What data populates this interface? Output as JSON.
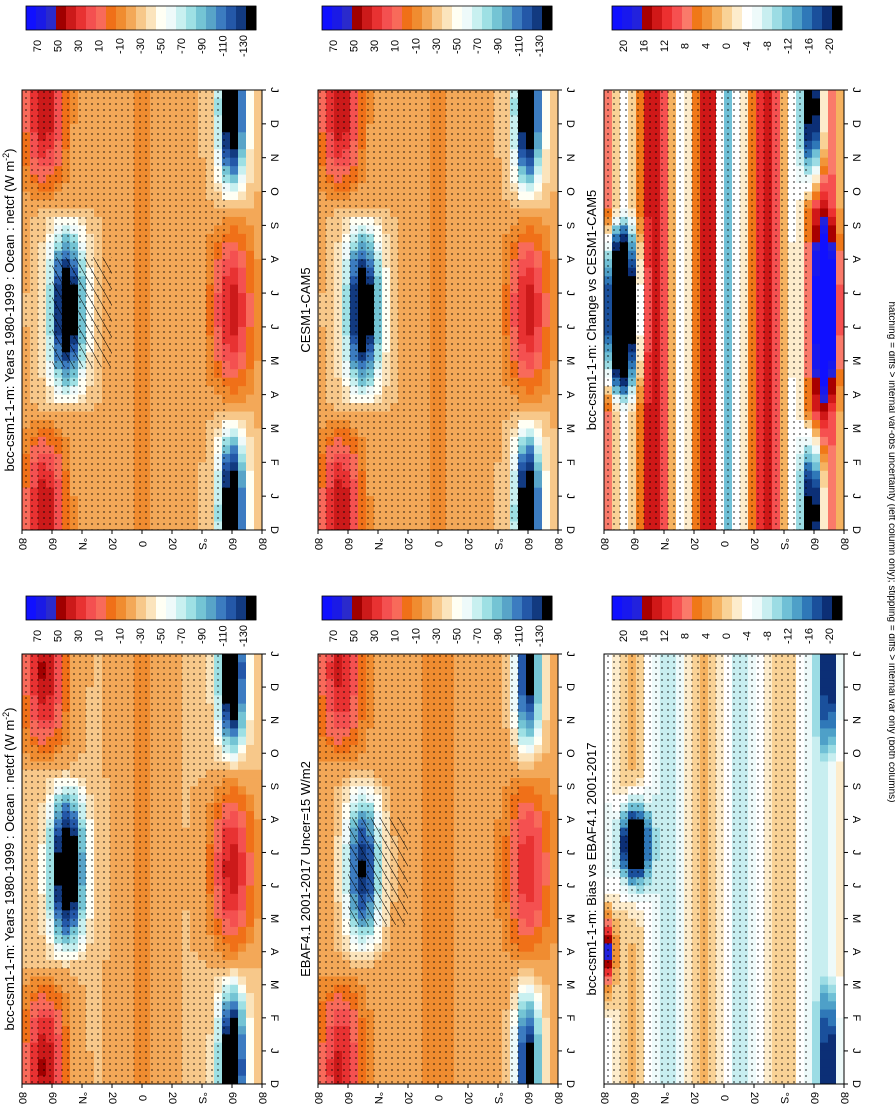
{
  "figure": {
    "footnote": "hatching = diffs > internal var-obs uncertainty (left column only); stippling = diffs > internal var only (both columns)"
  },
  "colors": {
    "abs_scale": [
      "#0000ff",
      "#0000ff",
      "#0000ff",
      "#1a1acc",
      "#8b0000",
      "#b22222",
      "#e03030",
      "#ff5050",
      "#ff7f7f",
      "#e07020",
      "#f09030",
      "#f5b060",
      "#fadca0",
      "#ffffe0",
      "#ffffff",
      "#e0f8f8",
      "#b0e8e8",
      "#80c8d8",
      "#60a8c8",
      "#4080c0",
      "#2050a0",
      "#103070",
      "#000000"
    ],
    "diff_scale": [
      "#0000ff",
      "#0000ff",
      "#0000ff",
      "#1a1acc",
      "#8b0000",
      "#b22222",
      "#e03030",
      "#ff5050",
      "#ff7f7f",
      "#e07020",
      "#f09030",
      "#f5b060",
      "#fadca0",
      "#ffffe0",
      "#ffffff",
      "#e0f8f8",
      "#b0e8e8",
      "#80c8d8",
      "#60a8c8",
      "#4080c0",
      "#2050a0",
      "#103070",
      "#000000"
    ]
  },
  "chart_data": [
    {
      "type": "heatmap",
      "id": "p1",
      "title": "bcc-csm1-1-m: Years 1980-1999 : Ocean : netcf (W m",
      "title_sup": "-2",
      "title_close": ")",
      "x_ticks": [
        "D",
        "J",
        "F",
        "M",
        "A",
        "M",
        "J",
        "J",
        "A",
        "S",
        "O",
        "N",
        "D",
        "J"
      ],
      "y_ticks": [
        "80",
        "60",
        "°N",
        "20",
        "0",
        "20",
        "°S",
        "60",
        "80"
      ],
      "colorbar_ticks": [
        "70",
        "50",
        "30",
        "10",
        "-10",
        "-30",
        "-50",
        "-70",
        "-90",
        "-110",
        "-130"
      ],
      "range": [
        -130,
        70
      ],
      "field": "abs"
    },
    {
      "type": "heatmap",
      "id": "p2",
      "title": "bcc-csm1-1-m: Years 1980-1999 : Ocean : netcf (W m",
      "title_sup": "-2",
      "title_close": ")",
      "x_ticks": [
        "D",
        "J",
        "F",
        "M",
        "A",
        "M",
        "J",
        "J",
        "A",
        "S",
        "O",
        "N",
        "D",
        "J"
      ],
      "y_ticks": [
        "80",
        "60",
        "°N",
        "20",
        "0",
        "20",
        "°S",
        "60",
        "80"
      ],
      "colorbar_ticks": [
        "70",
        "50",
        "30",
        "10",
        "-10",
        "-30",
        "-50",
        "-70",
        "-90",
        "-110",
        "-130"
      ],
      "range": [
        -130,
        70
      ],
      "field": "abs"
    },
    {
      "type": "heatmap",
      "id": "p3",
      "title": "EBAF4.1 2001-2017 Uncer=15 W/m2",
      "x_ticks": [
        "D",
        "J",
        "F",
        "M",
        "A",
        "M",
        "J",
        "J",
        "A",
        "S",
        "O",
        "N",
        "D",
        "J"
      ],
      "y_ticks": [
        "80",
        "60",
        "°N",
        "20",
        "0",
        "20",
        "°S",
        "60",
        "80"
      ],
      "colorbar_ticks": [
        "70",
        "50",
        "30",
        "10",
        "-10",
        "-30",
        "-50",
        "-70",
        "-90",
        "-110",
        "-130"
      ],
      "range": [
        -130,
        70
      ],
      "field": "abs"
    },
    {
      "type": "heatmap",
      "id": "p4",
      "title": "CESM1-CAM5",
      "x_ticks": [
        "D",
        "J",
        "F",
        "M",
        "A",
        "M",
        "J",
        "J",
        "A",
        "S",
        "O",
        "N",
        "D",
        "J"
      ],
      "y_ticks": [
        "80",
        "60",
        "°N",
        "20",
        "0",
        "20",
        "°S",
        "60",
        "80"
      ],
      "colorbar_ticks": [
        "70",
        "50",
        "30",
        "10",
        "-10",
        "-30",
        "-50",
        "-70",
        "-90",
        "-110",
        "-130"
      ],
      "range": [
        -130,
        70
      ],
      "field": "abs"
    },
    {
      "type": "heatmap",
      "id": "p5",
      "title": "bcc-csm1-1-m: Bias vs EBAF4.1 2001-2017",
      "x_ticks": [
        "D",
        "J",
        "F",
        "M",
        "A",
        "M",
        "J",
        "J",
        "A",
        "S",
        "O",
        "N",
        "D",
        "J"
      ],
      "y_ticks": [
        "80",
        "60",
        "°N",
        "20",
        "0",
        "20",
        "°S",
        "60",
        "80"
      ],
      "colorbar_ticks": [
        "20",
        "16",
        "12",
        "8",
        "4",
        "0",
        "-4",
        "-8",
        "-12",
        "-16",
        "-20"
      ],
      "range": [
        -20,
        20
      ],
      "field": "bias"
    },
    {
      "type": "heatmap",
      "id": "p6",
      "title": "bcc-csm1-1-m: Change vs CESM1-CAM5",
      "x_ticks": [
        "D",
        "J",
        "F",
        "M",
        "A",
        "M",
        "J",
        "J",
        "A",
        "S",
        "O",
        "N",
        "D",
        "J"
      ],
      "y_ticks": [
        "80",
        "60",
        "°N",
        "20",
        "0",
        "20",
        "°S",
        "60",
        "80"
      ],
      "colorbar_ticks": [
        "20",
        "16",
        "12",
        "8",
        "4",
        "0",
        "-4",
        "-8",
        "-12",
        "-16",
        "-20"
      ],
      "range": [
        -20,
        20
      ],
      "field": "change"
    }
  ]
}
